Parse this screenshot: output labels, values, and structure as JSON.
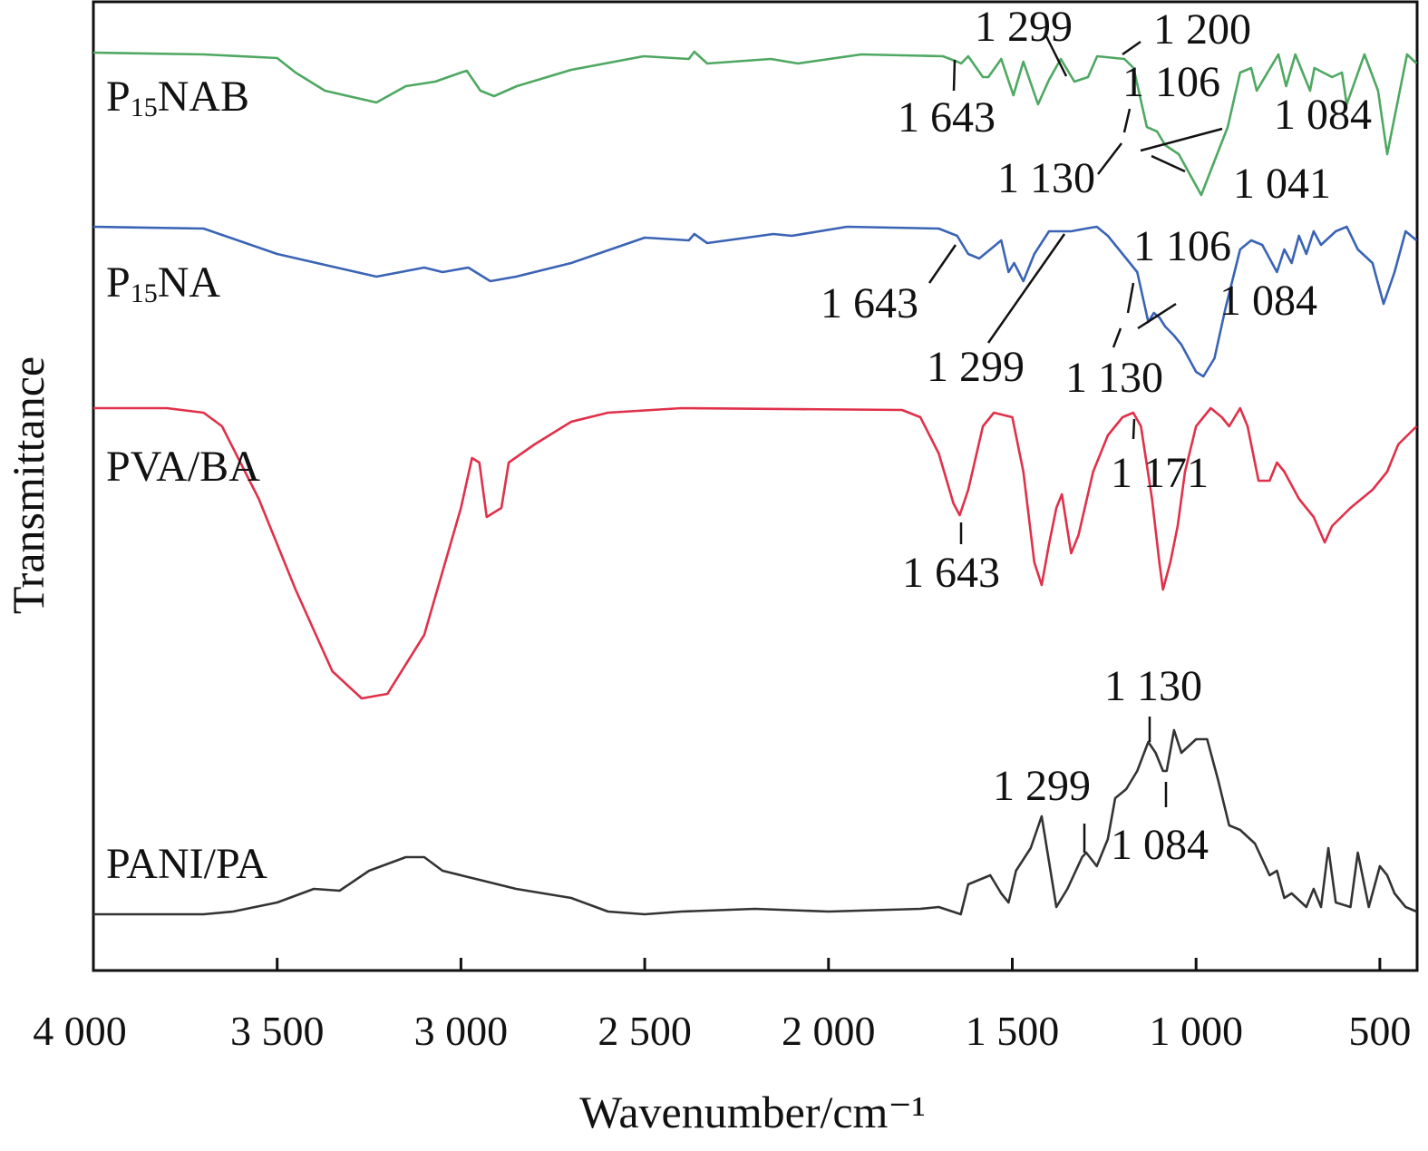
{
  "chart_data": {
    "type": "line",
    "title": "",
    "xlabel": "Wavenumber/cm⁻¹",
    "ylabel": "Transmittance",
    "xlim": [
      4000,
      400
    ],
    "ylim": [
      0,
      107
    ],
    "y_units": "offset transmittance (a.u.)",
    "grid": false,
    "x_ticks": [
      4000,
      3500,
      3000,
      2500,
      2000,
      1500,
      1000,
      500
    ],
    "x_tick_labels": [
      "4 000",
      "3 500",
      "3 000",
      "2 500",
      "2 000",
      "1 500",
      "1 000",
      "500"
    ],
    "series": [
      {
        "name": "P15NAB",
        "label_main": "P",
        "label_sub": "15",
        "label_rest": "NAB",
        "color": "#4ea862",
        "points": [
          [
            4000,
            101.2
          ],
          [
            3700,
            101
          ],
          [
            3500,
            100.6
          ],
          [
            3450,
            99
          ],
          [
            3370,
            97
          ],
          [
            3230,
            95.7
          ],
          [
            3150,
            97.5
          ],
          [
            3070,
            98
          ],
          [
            3000,
            99
          ],
          [
            2984,
            99.2
          ],
          [
            2947,
            97
          ],
          [
            2910,
            96.4
          ],
          [
            2848,
            97.5
          ],
          [
            2700,
            99.3
          ],
          [
            2503,
            100.8
          ],
          [
            2380,
            100.5
          ],
          [
            2365,
            101.3
          ],
          [
            2330,
            100
          ],
          [
            2157,
            100.5
          ],
          [
            2083,
            100
          ],
          [
            1911,
            101
          ],
          [
            1689,
            100.8
          ],
          [
            1650,
            100.2
          ],
          [
            1639,
            100
          ],
          [
            1620,
            100.8
          ],
          [
            1580,
            98.5
          ],
          [
            1565,
            98.5
          ],
          [
            1530,
            100.5
          ],
          [
            1497,
            96.5
          ],
          [
            1470,
            100.2
          ],
          [
            1430,
            95.5
          ],
          [
            1400,
            98.2
          ],
          [
            1368,
            100.5
          ],
          [
            1331,
            98
          ],
          [
            1294,
            98.5
          ],
          [
            1269,
            100.8
          ],
          [
            1195,
            100.5
          ],
          [
            1170,
            99.5
          ],
          [
            1134,
            93
          ],
          [
            1106,
            92.5
          ],
          [
            1084,
            91
          ],
          [
            1047,
            90
          ],
          [
            986,
            85.5
          ],
          [
            914,
            93
          ],
          [
            880,
            99
          ],
          [
            850,
            99.5
          ],
          [
            835,
            97
          ],
          [
            776,
            101
          ],
          [
            755,
            97.5
          ],
          [
            730,
            101
          ],
          [
            690,
            97
          ],
          [
            678,
            99.5
          ],
          [
            630,
            98.5
          ],
          [
            603,
            99
          ],
          [
            590,
            95.5
          ],
          [
            542,
            101
          ],
          [
            505,
            97
          ],
          [
            480,
            90
          ],
          [
            426,
            101
          ],
          [
            400,
            100
          ]
        ]
      },
      {
        "name": "P15NA",
        "label_main": "P",
        "label_sub": "15",
        "label_rest": "NA",
        "color": "#3a63b5",
        "points": [
          [
            4000,
            82
          ],
          [
            3700,
            81.8
          ],
          [
            3500,
            79
          ],
          [
            3230,
            76.5
          ],
          [
            3100,
            77.5
          ],
          [
            3050,
            77
          ],
          [
            2980,
            77.5
          ],
          [
            2920,
            76
          ],
          [
            2850,
            76.5
          ],
          [
            2700,
            78
          ],
          [
            2500,
            80.8
          ],
          [
            2380,
            80.5
          ],
          [
            2365,
            81.2
          ],
          [
            2330,
            80.2
          ],
          [
            2150,
            81.2
          ],
          [
            2100,
            81
          ],
          [
            1950,
            82
          ],
          [
            1700,
            81.8
          ],
          [
            1650,
            81
          ],
          [
            1620,
            79
          ],
          [
            1590,
            78.5
          ],
          [
            1560,
            79.5
          ],
          [
            1530,
            80.5
          ],
          [
            1510,
            77
          ],
          [
            1495,
            78
          ],
          [
            1470,
            76
          ],
          [
            1440,
            79
          ],
          [
            1400,
            81.5
          ],
          [
            1340,
            81.5
          ],
          [
            1300,
            81.8
          ],
          [
            1270,
            82
          ],
          [
            1240,
            81
          ],
          [
            1200,
            79
          ],
          [
            1160,
            77
          ],
          [
            1130,
            71.5
          ],
          [
            1115,
            72.5
          ],
          [
            1100,
            72
          ],
          [
            1084,
            71
          ],
          [
            1060,
            70
          ],
          [
            1040,
            69
          ],
          [
            1000,
            66
          ],
          [
            980,
            65.5
          ],
          [
            950,
            67.5
          ],
          [
            920,
            73
          ],
          [
            880,
            79.5
          ],
          [
            850,
            80.5
          ],
          [
            820,
            80
          ],
          [
            780,
            77
          ],
          [
            760,
            79.5
          ],
          [
            740,
            78
          ],
          [
            720,
            81
          ],
          [
            700,
            79
          ],
          [
            680,
            81.5
          ],
          [
            660,
            80
          ],
          [
            620,
            81.5
          ],
          [
            590,
            82
          ],
          [
            560,
            79.5
          ],
          [
            520,
            78
          ],
          [
            490,
            73.5
          ],
          [
            460,
            77
          ],
          [
            430,
            81.5
          ],
          [
            400,
            80.5
          ]
        ]
      },
      {
        "name": "PVA/BA",
        "color": "#e0304a",
        "points": [
          [
            4000,
            62
          ],
          [
            3800,
            62
          ],
          [
            3700,
            61.5
          ],
          [
            3650,
            60
          ],
          [
            3550,
            52
          ],
          [
            3450,
            42
          ],
          [
            3350,
            33
          ],
          [
            3270,
            30
          ],
          [
            3200,
            30.5
          ],
          [
            3100,
            37
          ],
          [
            3000,
            51
          ],
          [
            2970,
            56.5
          ],
          [
            2950,
            56
          ],
          [
            2930,
            50
          ],
          [
            2910,
            50.5
          ],
          [
            2890,
            51
          ],
          [
            2870,
            56
          ],
          [
            2800,
            58
          ],
          [
            2700,
            60.5
          ],
          [
            2600,
            61.5
          ],
          [
            2400,
            62
          ],
          [
            1800,
            61.8
          ],
          [
            1750,
            61
          ],
          [
            1700,
            57
          ],
          [
            1660,
            51.5
          ],
          [
            1643,
            50.2
          ],
          [
            1620,
            53
          ],
          [
            1580,
            60
          ],
          [
            1550,
            61.5
          ],
          [
            1500,
            61
          ],
          [
            1470,
            55
          ],
          [
            1440,
            45
          ],
          [
            1420,
            42.5
          ],
          [
            1400,
            47
          ],
          [
            1380,
            51
          ],
          [
            1365,
            52.5
          ],
          [
            1340,
            46
          ],
          [
            1320,
            48
          ],
          [
            1280,
            55
          ],
          [
            1240,
            59
          ],
          [
            1200,
            61
          ],
          [
            1171,
            61.5
          ],
          [
            1150,
            60
          ],
          [
            1120,
            52
          ],
          [
            1100,
            45
          ],
          [
            1090,
            42
          ],
          [
            1070,
            45
          ],
          [
            1050,
            49
          ],
          [
            1030,
            55
          ],
          [
            1000,
            60
          ],
          [
            960,
            62
          ],
          [
            930,
            61
          ],
          [
            910,
            60
          ],
          [
            880,
            62
          ],
          [
            860,
            60
          ],
          [
            830,
            54
          ],
          [
            800,
            54
          ],
          [
            780,
            56
          ],
          [
            760,
            55
          ],
          [
            720,
            52
          ],
          [
            680,
            50
          ],
          [
            650,
            47.2
          ],
          [
            630,
            49
          ],
          [
            580,
            51
          ],
          [
            520,
            53
          ],
          [
            480,
            55
          ],
          [
            450,
            58
          ],
          [
            400,
            60
          ]
        ]
      },
      {
        "name": "PANI/PA",
        "color": "#333333",
        "points": [
          [
            4000,
            6.2
          ],
          [
            3700,
            6.2
          ],
          [
            3620,
            6.5
          ],
          [
            3500,
            7.5
          ],
          [
            3400,
            9
          ],
          [
            3330,
            8.8
          ],
          [
            3250,
            11
          ],
          [
            3150,
            12.5
          ],
          [
            3100,
            12.5
          ],
          [
            3050,
            11
          ],
          [
            2950,
            10
          ],
          [
            2850,
            9
          ],
          [
            2700,
            8
          ],
          [
            2600,
            6.5
          ],
          [
            2500,
            6.2
          ],
          [
            2400,
            6.5
          ],
          [
            2200,
            6.8
          ],
          [
            2000,
            6.5
          ],
          [
            1750,
            6.8
          ],
          [
            1700,
            7
          ],
          [
            1640,
            6.2
          ],
          [
            1620,
            9.5
          ],
          [
            1590,
            10
          ],
          [
            1560,
            10.5
          ],
          [
            1530,
            8.5
          ],
          [
            1510,
            7.5
          ],
          [
            1490,
            11
          ],
          [
            1450,
            13.5
          ],
          [
            1420,
            17
          ],
          [
            1400,
            12
          ],
          [
            1380,
            7
          ],
          [
            1350,
            9
          ],
          [
            1310,
            12.5
          ],
          [
            1299,
            13
          ],
          [
            1270,
            11.5
          ],
          [
            1240,
            14.5
          ],
          [
            1220,
            19
          ],
          [
            1190,
            20
          ],
          [
            1160,
            22
          ],
          [
            1130,
            25.2
          ],
          [
            1110,
            24
          ],
          [
            1090,
            22
          ],
          [
            1080,
            22
          ],
          [
            1060,
            26.5
          ],
          [
            1040,
            24
          ],
          [
            1000,
            25.5
          ],
          [
            970,
            25.5
          ],
          [
            940,
            21
          ],
          [
            910,
            16
          ],
          [
            880,
            15.5
          ],
          [
            840,
            14
          ],
          [
            800,
            10.5
          ],
          [
            780,
            11
          ],
          [
            760,
            8
          ],
          [
            740,
            8.5
          ],
          [
            700,
            7
          ],
          [
            680,
            9
          ],
          [
            660,
            7
          ],
          [
            640,
            13.5
          ],
          [
            620,
            7.5
          ],
          [
            580,
            7
          ],
          [
            560,
            13
          ],
          [
            530,
            7
          ],
          [
            500,
            11.5
          ],
          [
            480,
            10.5
          ],
          [
            460,
            8.5
          ],
          [
            430,
            7
          ],
          [
            400,
            6.5
          ]
        ]
      }
    ],
    "annotations": [
      {
        "series": "P15NAB",
        "text": "1 299"
      },
      {
        "series": "P15NAB",
        "text": "1 200"
      },
      {
        "series": "P15NAB",
        "text": "1 643"
      },
      {
        "series": "P15NAB",
        "text": "1 106"
      },
      {
        "series": "P15NAB",
        "text": "1 084"
      },
      {
        "series": "P15NAB",
        "text": "1 130"
      },
      {
        "series": "P15NAB",
        "text": "1 041"
      },
      {
        "series": "P15NA",
        "text": "1 643"
      },
      {
        "series": "P15NA",
        "text": "1 299"
      },
      {
        "series": "P15NA",
        "text": "1 106"
      },
      {
        "series": "P15NA",
        "text": "1 084"
      },
      {
        "series": "P15NA",
        "text": "1 130"
      },
      {
        "series": "PVA/BA",
        "text": "1 171"
      },
      {
        "series": "PVA/BA",
        "text": "1 643"
      },
      {
        "series": "PANI/PA",
        "text": "1 130"
      },
      {
        "series": "PANI/PA",
        "text": "1 299"
      },
      {
        "series": "PANI/PA",
        "text": "1 084"
      }
    ]
  }
}
